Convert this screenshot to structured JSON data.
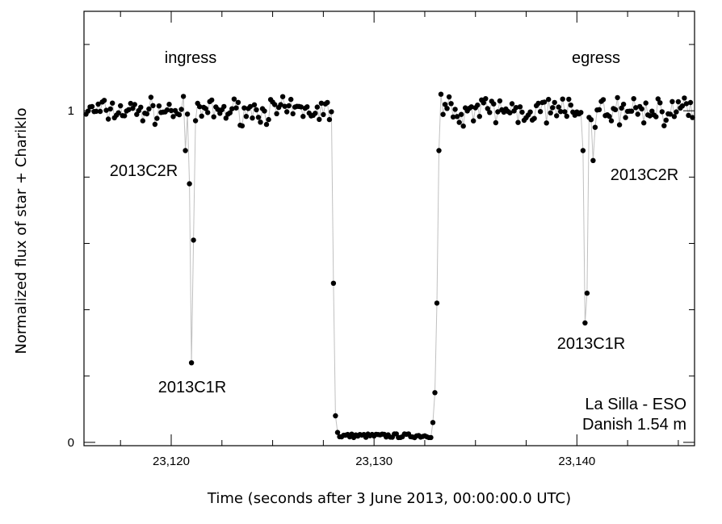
{
  "chart_data": {
    "type": "scatter",
    "xlabel": "Time (seconds after 3 June 2013, 00:00:00.0 UTC)",
    "ylabel": "Normalized flux of star + Chariklo",
    "xlim": [
      23115.7,
      23145.8
    ],
    "ylim": [
      -0.01,
      1.3
    ],
    "x_ticks": [
      23120,
      23130,
      23140
    ],
    "x_tick_labels": [
      "23,120",
      "23,130",
      "23,140"
    ],
    "y_ticks": [
      0,
      1
    ],
    "y_tick_labels": [
      "0",
      "1"
    ],
    "grid": false,
    "series_color": "#000000",
    "line_color": "#c0c0c0",
    "annotations": [
      {
        "text": "ingress",
        "x": 23120.7,
        "y": 1.16
      },
      {
        "text": "egress",
        "x": 23141.0,
        "y": 1.16
      },
      {
        "text": "2013C2R",
        "x": 23119.0,
        "y": 0.83
      },
      {
        "text": "2013C1R",
        "x": 23121.4,
        "y": 0.17
      },
      {
        "text": "2013C2R",
        "x": 23141.4,
        "y": 0.82
      },
      {
        "text": "2013C1R",
        "x": 23139.2,
        "y": 0.3
      }
    ],
    "legend_text": [
      "La Silla - ESO",
      "Danish 1.54 m"
    ],
    "points": {
      "x_start": 23115.8,
      "dt": 0.1,
      "flux_baseline": 1.0,
      "ingress_C2R": [
        [
          23120.7,
          0.88
        ],
        [
          23120.8,
          0.99
        ]
      ],
      "ingress_C1R": [
        [
          23120.9,
          0.78
        ],
        [
          23121.0,
          0.24
        ],
        [
          23121.1,
          0.61
        ],
        [
          23121.2,
          0.97
        ]
      ],
      "main_ingress": [
        [
          23128.0,
          0.48
        ],
        [
          23128.1,
          0.08
        ],
        [
          23128.2,
          0.03
        ]
      ],
      "occultation_floor": 0.02,
      "main_egress": [
        [
          23132.9,
          0.06
        ],
        [
          23133.0,
          0.15
        ],
        [
          23133.1,
          0.42
        ],
        [
          23133.2,
          0.88
        ],
        [
          23133.3,
          1.05
        ]
      ],
      "egress_C1R": [
        [
          23140.3,
          0.88
        ],
        [
          23140.4,
          0.36
        ],
        [
          23140.5,
          0.45
        ],
        [
          23140.6,
          0.98
        ]
      ],
      "egress_C2R": [
        [
          23140.8,
          0.85
        ],
        [
          23140.9,
          0.95
        ]
      ]
    }
  }
}
